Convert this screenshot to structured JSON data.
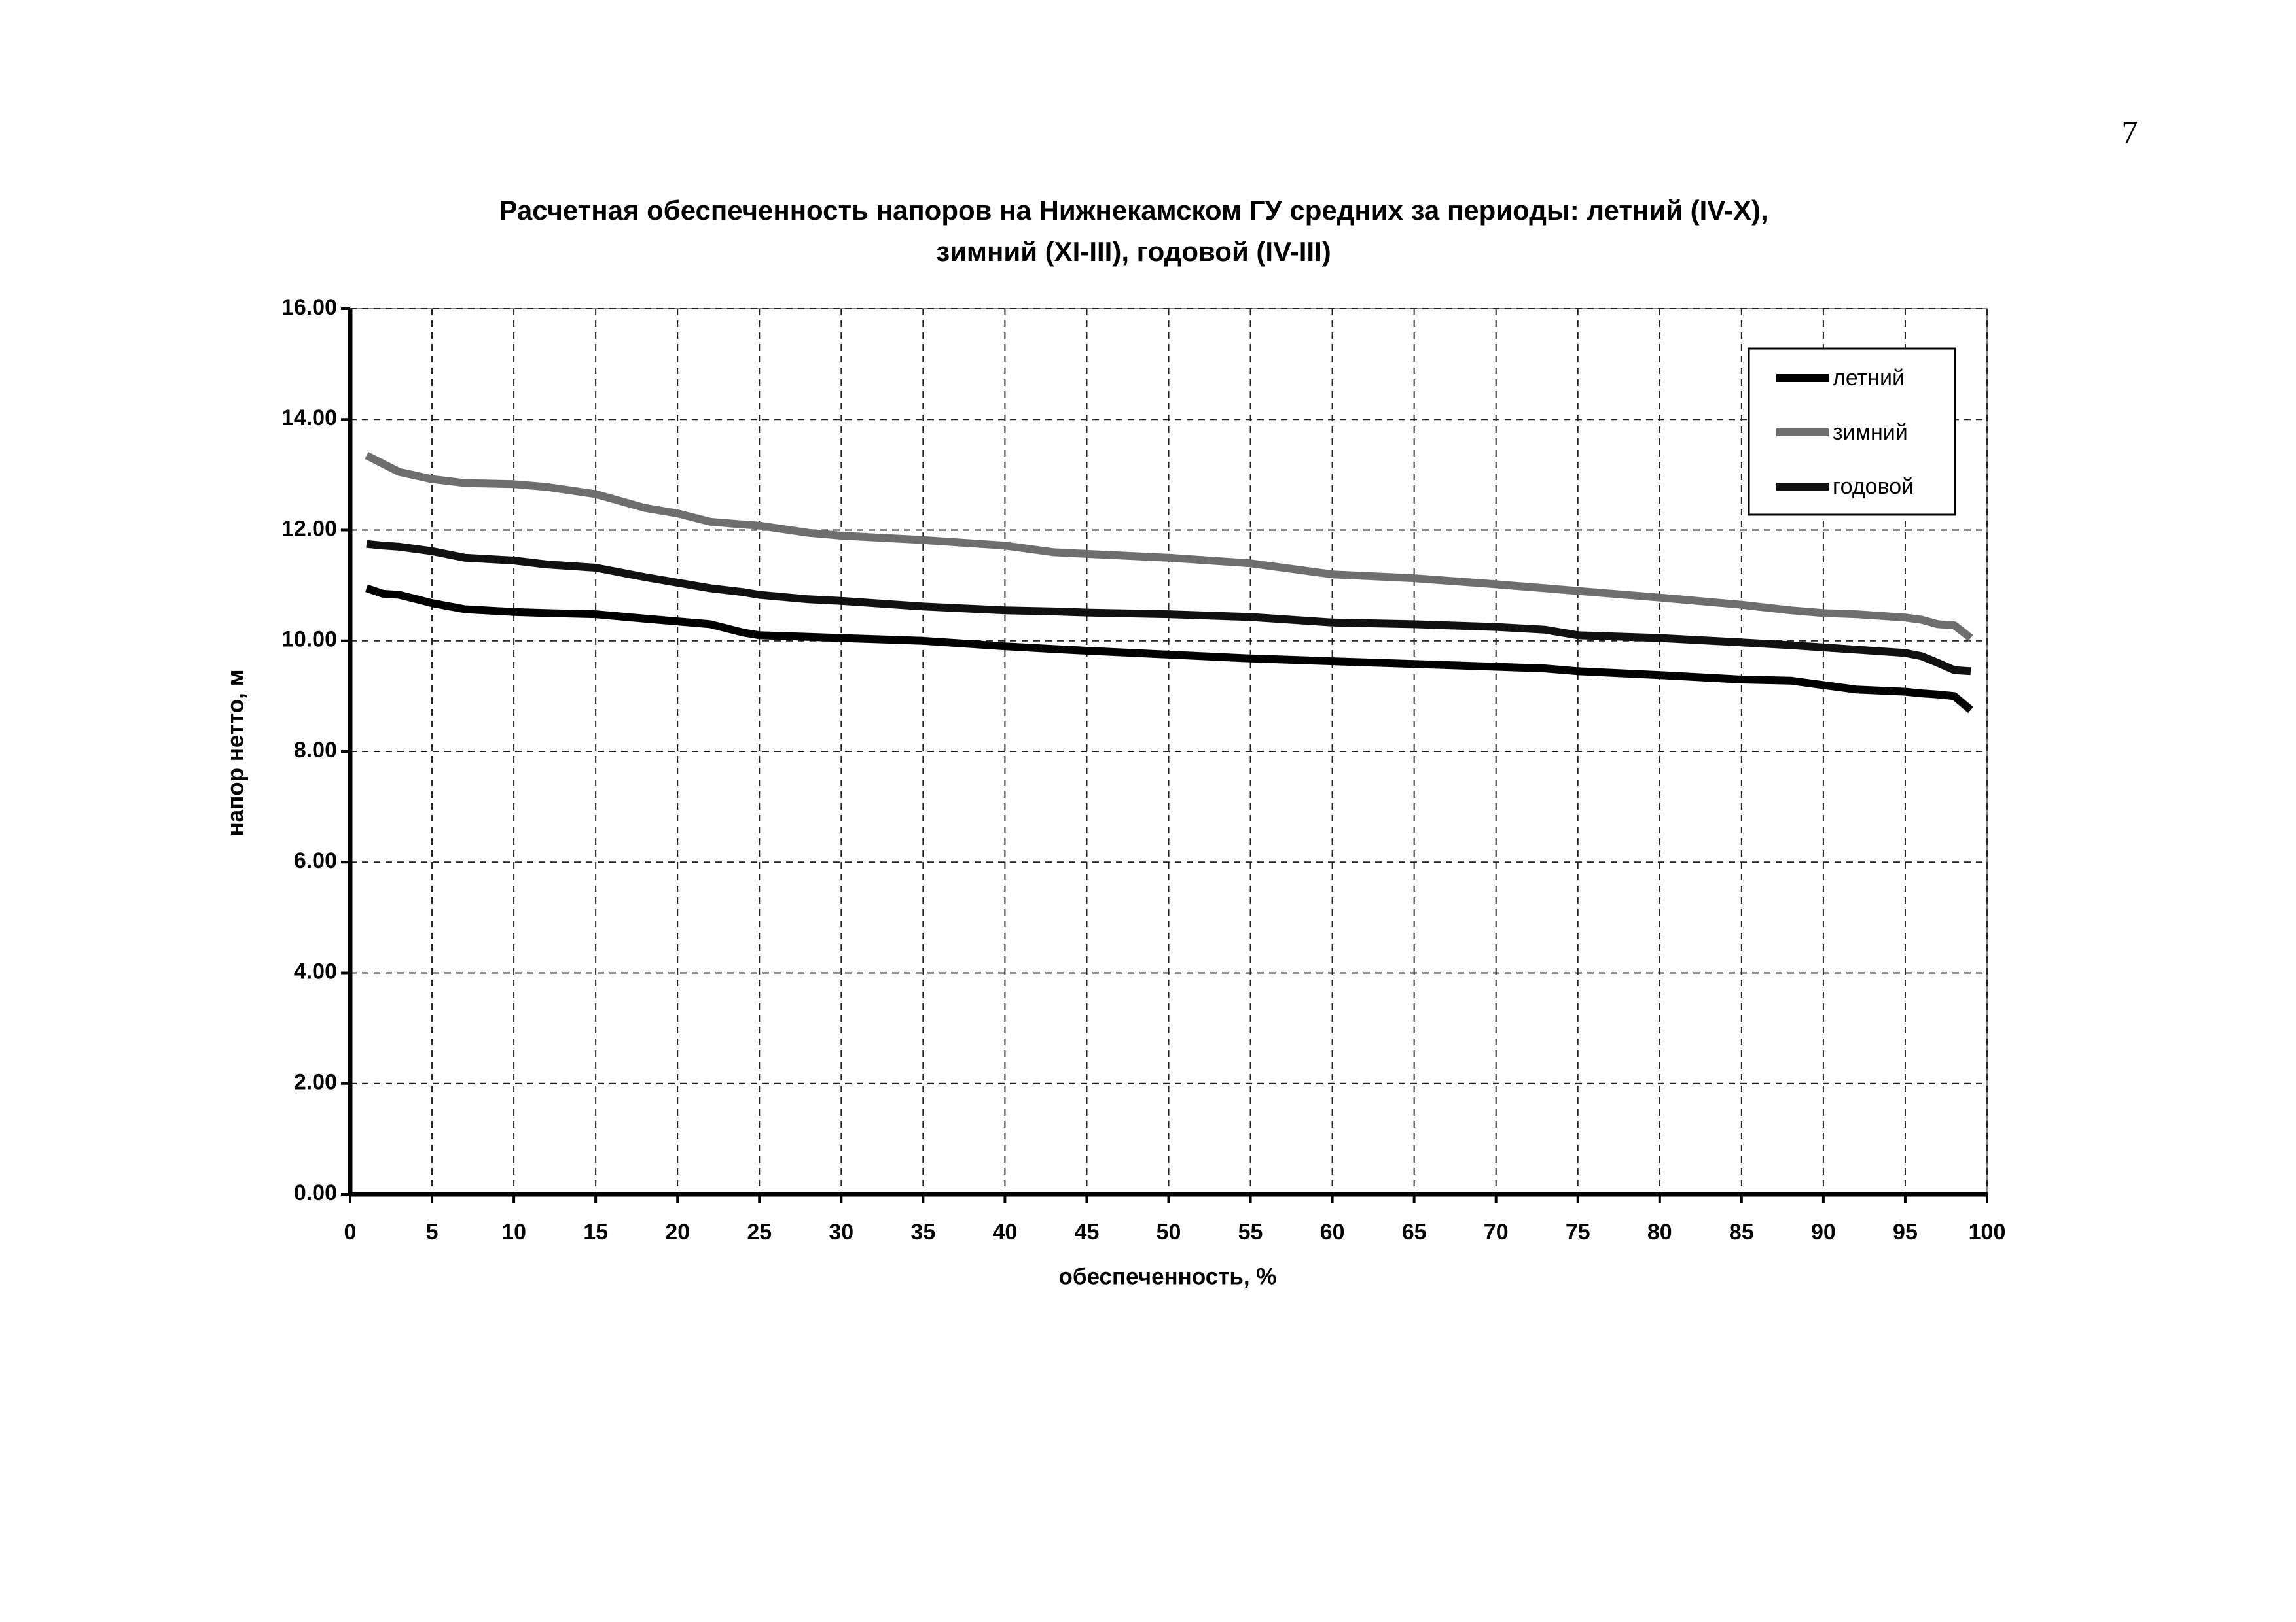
{
  "page_number": "7",
  "chart_data": {
    "type": "line",
    "title": [
      "Расчетная обеспеченность напоров на Нижнекамском ГУ средних за периоды: летний (IV-X),",
      "зимний (XI-III), годовой (IV-III)"
    ],
    "x_label": "обеспеченность, %",
    "y_label": "напор нетто, м",
    "x": [
      1,
      2,
      3,
      5,
      7,
      10,
      12,
      15,
      18,
      20,
      22,
      24,
      25,
      28,
      30,
      35,
      40,
      43,
      45,
      50,
      55,
      60,
      65,
      70,
      73,
      75,
      80,
      85,
      88,
      90,
      92,
      95,
      96,
      97,
      98,
      99
    ],
    "series": [
      {
        "name": "летний",
        "color": "#000000",
        "values": [
          10.95,
          10.85,
          10.83,
          10.68,
          10.57,
          10.52,
          10.5,
          10.48,
          10.4,
          10.35,
          10.3,
          10.15,
          10.1,
          10.07,
          10.05,
          10.0,
          9.9,
          9.85,
          9.82,
          9.75,
          9.68,
          9.63,
          9.58,
          9.53,
          9.5,
          9.45,
          9.38,
          9.3,
          9.28,
          9.2,
          9.12,
          9.08,
          9.05,
          9.03,
          9.0,
          8.75
        ]
      },
      {
        "name": "зимний",
        "color": "#6e6e6e",
        "values": [
          13.35,
          13.2,
          13.05,
          12.92,
          12.85,
          12.83,
          12.78,
          12.65,
          12.4,
          12.3,
          12.15,
          12.1,
          12.08,
          11.95,
          11.9,
          11.82,
          11.72,
          11.6,
          11.57,
          11.5,
          11.4,
          11.2,
          11.13,
          11.02,
          10.95,
          10.9,
          10.78,
          10.65,
          10.55,
          10.5,
          10.48,
          10.42,
          10.38,
          10.3,
          10.28,
          10.05
        ]
      },
      {
        "name": "годовой",
        "color": "#111111",
        "values": [
          11.75,
          11.72,
          11.7,
          11.62,
          11.5,
          11.45,
          11.38,
          11.32,
          11.15,
          11.05,
          10.95,
          10.88,
          10.83,
          10.75,
          10.72,
          10.62,
          10.55,
          10.53,
          10.51,
          10.48,
          10.43,
          10.33,
          10.3,
          10.25,
          10.2,
          10.1,
          10.05,
          9.97,
          9.92,
          9.88,
          9.84,
          9.78,
          9.72,
          9.6,
          9.47,
          9.45
        ]
      }
    ],
    "xlim": [
      0,
      100
    ],
    "xticks": [
      0,
      5,
      10,
      15,
      20,
      25,
      30,
      35,
      40,
      45,
      50,
      55,
      60,
      65,
      70,
      75,
      80,
      85,
      90,
      95,
      100
    ],
    "ylim": [
      0,
      16
    ],
    "yticks": [
      {
        "value": 0,
        "label": "0.00"
      },
      {
        "value": 2,
        "label": "2.00"
      },
      {
        "value": 4,
        "label": "4.00"
      },
      {
        "value": 6,
        "label": "6.00"
      },
      {
        "value": 8,
        "label": "8.00"
      },
      {
        "value": 10,
        "label": "10.00"
      },
      {
        "value": 12,
        "label": "12.00"
      },
      {
        "value": 14,
        "label": "14.00"
      },
      {
        "value": 16,
        "label": "16.00"
      }
    ],
    "grid": true,
    "legend": "upper right"
  }
}
